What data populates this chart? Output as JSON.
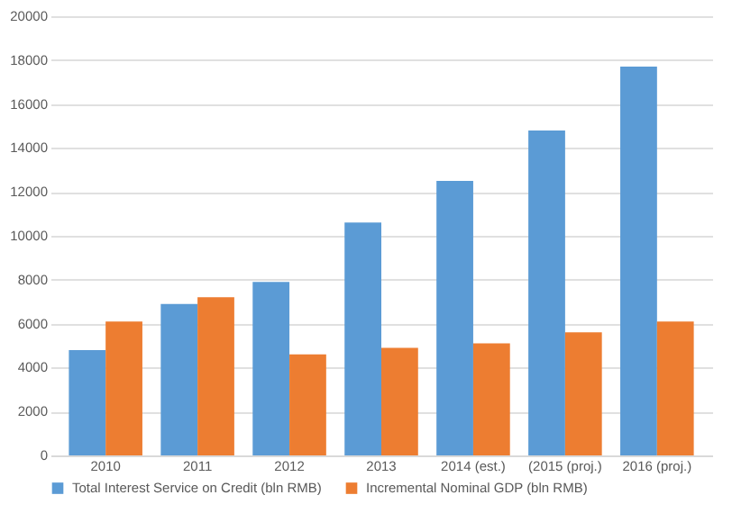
{
  "chart_data": {
    "type": "bar",
    "categories": [
      "2010",
      "2011",
      "2012",
      "2013",
      "2014 (est.)",
      "(2015 (proj.)",
      "2016 (proj.)"
    ],
    "series": [
      {
        "name": "Total Interest Service on Credit (bln RMB)",
        "color": "#5b9bd5",
        "values": [
          4800,
          6900,
          7900,
          10600,
          12500,
          14800,
          17700
        ]
      },
      {
        "name": "Incremental Nominal GDP (bln RMB)",
        "color": "#ed7d31",
        "values": [
          6100,
          7200,
          4600,
          4900,
          5100,
          5600,
          6100
        ]
      }
    ],
    "ylim": [
      0,
      20000
    ],
    "yticks": [
      0,
      2000,
      4000,
      6000,
      8000,
      10000,
      12000,
      14000,
      16000,
      18000,
      20000
    ],
    "grid": "y",
    "legend": "bottom"
  }
}
